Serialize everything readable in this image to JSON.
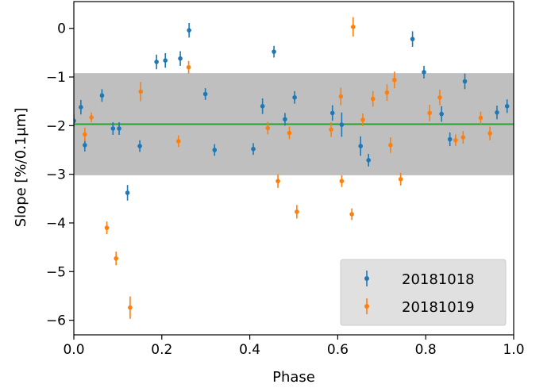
{
  "chart_data": {
    "type": "scatter",
    "xlabel": "Phase",
    "ylabel": "Slope [%/0.1μm]",
    "xlim": [
      0.0,
      1.0
    ],
    "ylim": [
      -6.3,
      0.55
    ],
    "x_ticks": [
      "0.0",
      "0.2",
      "0.4",
      "0.6",
      "0.8",
      "1.0"
    ],
    "y_ticks": [
      "0",
      "−1",
      "−2",
      "−3",
      "−4",
      "−5",
      "−6"
    ],
    "band": {
      "low": -3.02,
      "high": -0.92,
      "color": "#bfbfbf"
    },
    "mean_line": {
      "value": -1.97,
      "color": "#2ca02c"
    },
    "legend_position": "lower-right",
    "series": [
      {
        "name": "20181018",
        "color": "#1f77b4",
        "points": [
          {
            "x": 0.0,
            "y": -1.9,
            "err": 0.13
          },
          {
            "x": 0.016,
            "y": -1.62,
            "err": 0.15
          },
          {
            "x": 0.025,
            "y": -2.4,
            "err": 0.13
          },
          {
            "x": 0.064,
            "y": -1.38,
            "err": 0.13
          },
          {
            "x": 0.089,
            "y": -2.06,
            "err": 0.13
          },
          {
            "x": 0.103,
            "y": -2.06,
            "err": 0.13
          },
          {
            "x": 0.122,
            "y": -3.38,
            "err": 0.16
          },
          {
            "x": 0.15,
            "y": -2.42,
            "err": 0.12
          },
          {
            "x": 0.188,
            "y": -0.69,
            "err": 0.15
          },
          {
            "x": 0.208,
            "y": -0.66,
            "err": 0.15
          },
          {
            "x": 0.242,
            "y": -0.62,
            "err": 0.15
          },
          {
            "x": 0.262,
            "y": -0.04,
            "err": 0.15
          },
          {
            "x": 0.299,
            "y": -1.35,
            "err": 0.12
          },
          {
            "x": 0.32,
            "y": -2.5,
            "err": 0.12
          },
          {
            "x": 0.408,
            "y": -2.48,
            "err": 0.12
          },
          {
            "x": 0.429,
            "y": -1.6,
            "err": 0.16
          },
          {
            "x": 0.455,
            "y": -0.48,
            "err": 0.12
          },
          {
            "x": 0.48,
            "y": -1.87,
            "err": 0.13
          },
          {
            "x": 0.502,
            "y": -1.42,
            "err": 0.13
          },
          {
            "x": 0.588,
            "y": -1.74,
            "err": 0.16
          },
          {
            "x": 0.609,
            "y": -1.98,
            "err": 0.25
          },
          {
            "x": 0.652,
            "y": -2.42,
            "err": 0.2
          },
          {
            "x": 0.67,
            "y": -2.71,
            "err": 0.13
          },
          {
            "x": 0.77,
            "y": -0.22,
            "err": 0.16
          },
          {
            "x": 0.796,
            "y": -0.9,
            "err": 0.13
          },
          {
            "x": 0.836,
            "y": -1.76,
            "err": 0.16
          },
          {
            "x": 0.855,
            "y": -2.28,
            "err": 0.14
          },
          {
            "x": 0.889,
            "y": -1.09,
            "err": 0.16
          },
          {
            "x": 0.962,
            "y": -1.73,
            "err": 0.14
          },
          {
            "x": 0.985,
            "y": -1.6,
            "err": 0.14
          }
        ]
      },
      {
        "name": "20181019",
        "color": "#ff7f0e",
        "points": [
          {
            "x": 0.025,
            "y": -2.18,
            "err": 0.14
          },
          {
            "x": 0.04,
            "y": -1.83,
            "err": 0.1
          },
          {
            "x": 0.075,
            "y": -4.1,
            "err": 0.13
          },
          {
            "x": 0.096,
            "y": -4.73,
            "err": 0.14
          },
          {
            "x": 0.128,
            "y": -5.74,
            "err": 0.23
          },
          {
            "x": 0.152,
            "y": -1.3,
            "err": 0.2
          },
          {
            "x": 0.238,
            "y": -2.32,
            "err": 0.12
          },
          {
            "x": 0.261,
            "y": -0.8,
            "err": 0.13
          },
          {
            "x": 0.441,
            "y": -2.05,
            "err": 0.13
          },
          {
            "x": 0.464,
            "y": -3.14,
            "err": 0.14
          },
          {
            "x": 0.49,
            "y": -2.15,
            "err": 0.13
          },
          {
            "x": 0.507,
            "y": -3.77,
            "err": 0.14
          },
          {
            "x": 0.585,
            "y": -2.08,
            "err": 0.15
          },
          {
            "x": 0.607,
            "y": -1.4,
            "err": 0.18
          },
          {
            "x": 0.609,
            "y": -3.14,
            "err": 0.12
          },
          {
            "x": 0.632,
            "y": -3.82,
            "err": 0.12
          },
          {
            "x": 0.635,
            "y": 0.03,
            "err": 0.2
          },
          {
            "x": 0.657,
            "y": -1.88,
            "err": 0.13
          },
          {
            "x": 0.68,
            "y": -1.45,
            "err": 0.16
          },
          {
            "x": 0.712,
            "y": -1.32,
            "err": 0.17
          },
          {
            "x": 0.72,
            "y": -2.4,
            "err": 0.16
          },
          {
            "x": 0.729,
            "y": -1.06,
            "err": 0.17
          },
          {
            "x": 0.743,
            "y": -3.1,
            "err": 0.13
          },
          {
            "x": 0.809,
            "y": -1.74,
            "err": 0.17
          },
          {
            "x": 0.832,
            "y": -1.42,
            "err": 0.16
          },
          {
            "x": 0.868,
            "y": -2.3,
            "err": 0.12
          },
          {
            "x": 0.885,
            "y": -2.24,
            "err": 0.13
          },
          {
            "x": 0.925,
            "y": -1.84,
            "err": 0.13
          },
          {
            "x": 0.946,
            "y": -2.16,
            "err": 0.14
          }
        ]
      }
    ]
  }
}
